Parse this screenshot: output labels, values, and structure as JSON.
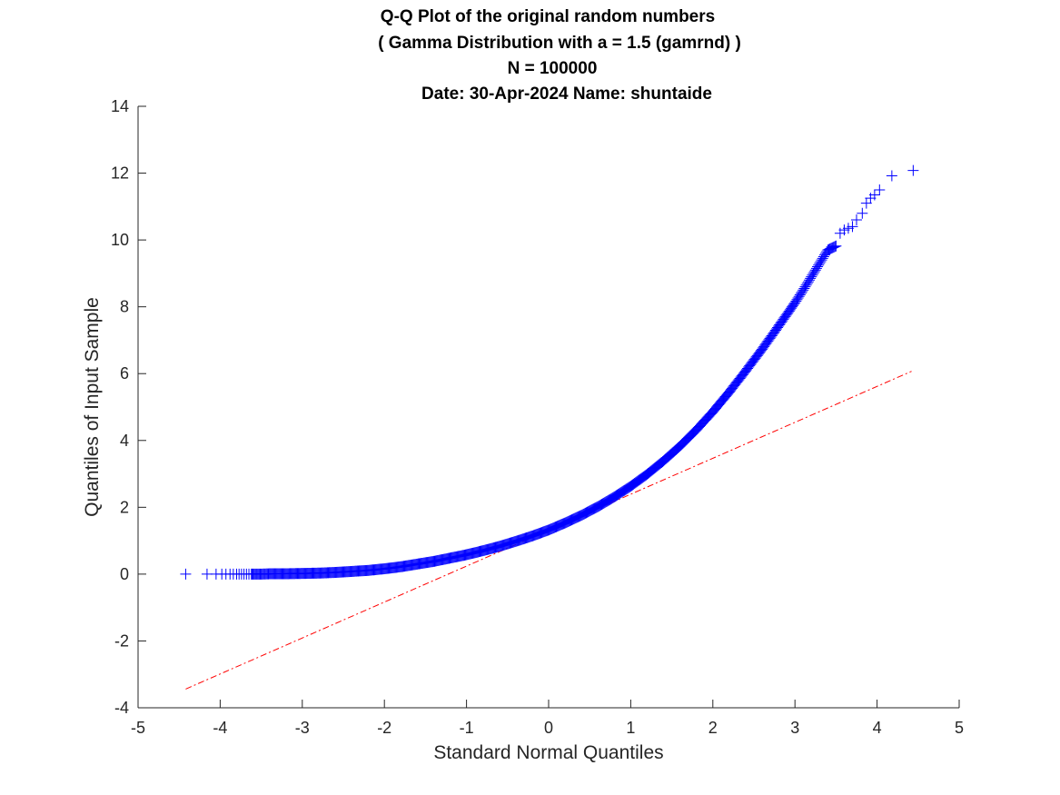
{
  "chart_data": {
    "type": "scatter",
    "title_lines": [
      "Q-Q Plot of the original random numbers",
      "( Gamma Distribution with a = 1.5 (gamrnd) )",
      "N = 100000",
      "Date: 30-Apr-2024 Name: shuntaide"
    ],
    "xlabel": "Standard Normal Quantiles",
    "ylabel": "Quantiles of Input Sample",
    "xlim": [
      -5,
      5
    ],
    "ylim": [
      -4,
      14
    ],
    "xticks": [
      -5,
      -4,
      -3,
      -2,
      -1,
      0,
      1,
      2,
      3,
      4,
      5
    ],
    "yticks": [
      -4,
      -2,
      0,
      2,
      4,
      6,
      8,
      10,
      12,
      14
    ],
    "grid": false,
    "legend": "none",
    "series": [
      {
        "marker": "+",
        "color": "#0000ff",
        "x": [
          -4.42,
          -4.16,
          -4.05,
          -3.98,
          -3.93,
          -3.88,
          -3.84,
          -3.8,
          -3.77,
          -3.74,
          -3.71,
          -3.68,
          -3.65,
          -3.62,
          -3.6,
          -3.55,
          -3.5,
          -3.4,
          -3.2,
          -3.0,
          -2.8,
          -2.6,
          -2.4,
          -2.2,
          -2.0,
          -1.8,
          -1.6,
          -1.4,
          -1.2,
          -1.0,
          -0.8,
          -0.6,
          -0.4,
          -0.2,
          0.0,
          0.2,
          0.4,
          0.6,
          0.8,
          1.0,
          1.2,
          1.4,
          1.6,
          1.8,
          2.0,
          2.2,
          2.4,
          2.6,
          2.8,
          3.0,
          3.1,
          3.2,
          3.3,
          3.4,
          3.5,
          3.55,
          3.6,
          3.65,
          3.7,
          3.75,
          3.82,
          3.87,
          3.92,
          3.97,
          4.03,
          4.18,
          4.44
        ],
        "y": [
          0.0,
          0.0,
          0.0,
          0.0,
          0.0,
          0.0,
          0.0,
          0.0,
          0.0,
          0.0,
          0.0,
          0.0,
          0.0,
          0.0,
          0.0,
          0.0,
          0.0,
          0.01,
          0.01,
          0.02,
          0.03,
          0.05,
          0.08,
          0.11,
          0.16,
          0.22,
          0.3,
          0.38,
          0.48,
          0.58,
          0.7,
          0.83,
          0.98,
          1.14,
          1.32,
          1.53,
          1.76,
          2.02,
          2.31,
          2.63,
          2.99,
          3.39,
          3.83,
          4.32,
          4.86,
          5.45,
          6.08,
          6.73,
          7.42,
          8.12,
          8.5,
          8.9,
          9.3,
          9.7,
          9.82,
          10.2,
          10.3,
          10.35,
          10.4,
          10.6,
          10.8,
          11.1,
          11.25,
          11.35,
          11.5,
          11.92,
          12.08
        ]
      },
      {
        "type": "reference-line",
        "style": "dash-dot",
        "color": "#ff0000",
        "x": [
          -4.42,
          4.42
        ],
        "y": [
          -3.44,
          6.07
        ]
      }
    ]
  },
  "colors": {
    "points": "#0000ff",
    "reference_line": "#ff0000",
    "axes": "#262626",
    "title": "#000000"
  }
}
